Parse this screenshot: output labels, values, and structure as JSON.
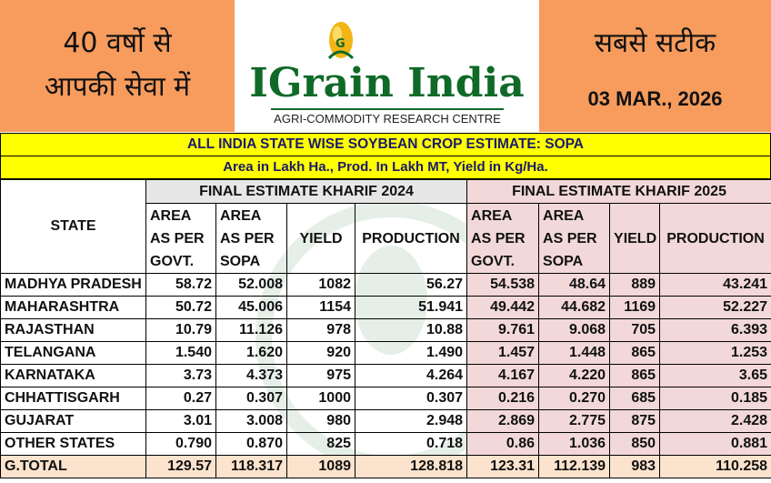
{
  "header": {
    "tagline_left_line1": "40 वर्षो से",
    "tagline_left_line2": "आपकी सेवा में",
    "tagline_right": "सबसे सटीक",
    "date": "03 MAR., 2026",
    "logo_text": "IGrain India",
    "logo_subtitle": "AGRI-COMMODITY RESEARCH CENTRE",
    "logo_mark_letter": "G"
  },
  "title": "ALL INDIA STATE WISE SOYBEAN CROP ESTIMATE: SOPA",
  "subtitle": "Area in Lakh Ha., Prod. In Lakh MT, Yield in Kg/Ha.",
  "table": {
    "state_header": "STATE",
    "group_2024": "FINAL ESTIMATE KHARIF 2024",
    "group_2025": "FINAL ESTIMATE KHARIF 2025",
    "col_area_govt": [
      "AREA",
      "AS PER",
      "GOVT."
    ],
    "col_area_sopa": [
      "AREA",
      "AS PER",
      "SOPA"
    ],
    "col_yield": "YIELD",
    "col_production": "PRODUCTION",
    "rows": [
      {
        "state": "MADHYA PRADESH",
        "v": [
          "58.72",
          "52.008",
          "1082",
          "56.27",
          "54.538",
          "48.64",
          "889",
          "43.241"
        ]
      },
      {
        "state": "MAHARASHTRA",
        "v": [
          "50.72",
          "45.006",
          "1154",
          "51.941",
          "49.442",
          "44.682",
          "1169",
          "52.227"
        ]
      },
      {
        "state": "RAJASTHAN",
        "v": [
          "10.79",
          "11.126",
          "978",
          "10.88",
          "9.761",
          "9.068",
          "705",
          "6.393"
        ]
      },
      {
        "state": "TELANGANA",
        "v": [
          "1.540",
          "1.620",
          "920",
          "1.490",
          "1.457",
          "1.448",
          "865",
          "1.253"
        ]
      },
      {
        "state": "KARNATAKA",
        "v": [
          "3.73",
          "4.373",
          "975",
          "4.264",
          "4.167",
          "4.220",
          "865",
          "3.65"
        ]
      },
      {
        "state": "CHHATTISGARH",
        "v": [
          "0.27",
          "0.307",
          "1000",
          "0.307",
          "0.216",
          "0.270",
          "685",
          "0.185"
        ]
      },
      {
        "state": "GUJARAT",
        "v": [
          "3.01",
          "3.008",
          "980",
          "2.948",
          "2.869",
          "2.775",
          "875",
          "2.428"
        ]
      },
      {
        "state": "OTHER STATES",
        "v": [
          "0.790",
          "0.870",
          "825",
          "0.718",
          "0.86",
          "1.036",
          "850",
          "0.881"
        ]
      }
    ],
    "total": {
      "state": "G.TOTAL",
      "v": [
        "129.57",
        "118.317",
        "1089",
        "128.818",
        "123.31",
        "112.139",
        "983",
        "110.258"
      ]
    }
  },
  "colors": {
    "header_orange": "#f79c5d",
    "title_yellow": "#ffff00",
    "title_text": "#1a1a6e",
    "logo_green": "#0f6a28",
    "col_2024_bg": "#e7e7e7",
    "col_2025_bg": "#f2d8d8",
    "total_bg": "#fbe3cd"
  }
}
